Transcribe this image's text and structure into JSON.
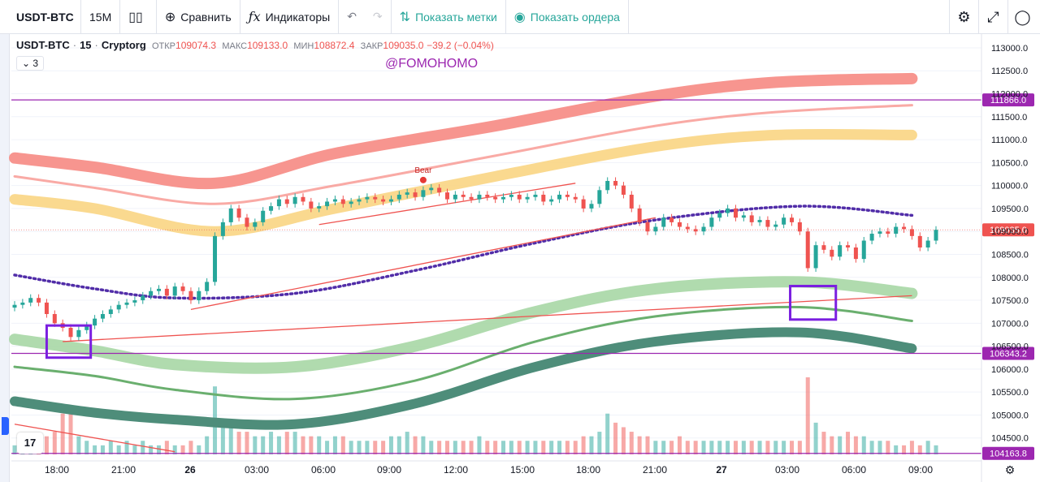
{
  "toolbar": {
    "symbol": "USDT-BTC",
    "interval": "15М",
    "compare_label": "Сравнить",
    "indicators_label": "Индикаторы",
    "show_marks_label": "Показать метки",
    "show_orders_label": "Показать ордера",
    "icons": [
      "candles-icon",
      "plus-circle-icon",
      "fx-icon",
      "undo-icon",
      "redo-icon",
      "settings-icon",
      "fullscreen-icon",
      "camera-icon"
    ]
  },
  "legend": {
    "symbol": "USDT-BTC",
    "interval": "15",
    "exchange": "Cryptorg",
    "open_label": "ОТКР",
    "open": "109074.3",
    "high_label": "МАКС",
    "high": "109133.0",
    "low_label": "МИН",
    "low": "108872.4",
    "close_label": "ЗАКР",
    "close": "109035.0",
    "change": "−39.2 (−0.04%)",
    "indicators_count": "3"
  },
  "watermark": "@FOMOHOMO",
  "logo_text": "17",
  "colors": {
    "up": "#26a69a",
    "down": "#ef5350",
    "band_red": "#f7958f",
    "band_orange": "#fad583",
    "band_light_green": "#a7d7a5",
    "band_green": "#6aaf6e",
    "band_dark_green": "#4e8d7a",
    "dotted": "#512da8",
    "level": "#9c27b0",
    "trend": "#ef5350",
    "box": "#7b1fe0"
  },
  "chart_data": {
    "type": "candlestick",
    "y_range": [
      104000,
      113300
    ],
    "y_ticks": [
      "113000.0",
      "112500.0",
      "112000.0",
      "111500.0",
      "111000.0",
      "110500.0",
      "110000.0",
      "109500.0",
      "109000.0",
      "108500.0",
      "108000.0",
      "107500.0",
      "107000.0",
      "106500.0",
      "106000.0",
      "105500.0",
      "105000.0",
      "104500.0"
    ],
    "y_tick_values": [
      113000,
      112500,
      112000,
      111500,
      111000,
      110500,
      110000,
      109500,
      109000,
      108500,
      108000,
      107500,
      107000,
      106500,
      106000,
      105500,
      105000,
      104500
    ],
    "x_ticks": [
      "18:00",
      "21:00",
      "26",
      "03:00",
      "06:00",
      "09:00",
      "12:00",
      "15:00",
      "18:00",
      "21:00",
      "27",
      "03:00",
      "06:00",
      "09:00"
    ],
    "horizontal_levels": [
      {
        "value": 111866.0,
        "label": "111866.0"
      },
      {
        "value": 106343.2,
        "label": "106343.2"
      },
      {
        "value": 104163.8,
        "label": "104163.8"
      }
    ],
    "current_price": {
      "value": 109035.0,
      "label": "109035.0"
    },
    "marker": {
      "text": "Bear",
      "x_index": 51,
      "price": 110120
    },
    "bands": {
      "band_red_thick": [
        [
          0,
          110600
        ],
        [
          10,
          110400
        ],
        [
          25,
          110050
        ],
        [
          40,
          110700
        ],
        [
          60,
          111300
        ],
        [
          80,
          111950
        ],
        [
          95,
          112250
        ],
        [
          112,
          112330
        ]
      ],
      "band_red_thin": [
        [
          0,
          110200
        ],
        [
          10,
          109950
        ],
        [
          25,
          109600
        ],
        [
          40,
          110000
        ],
        [
          60,
          110650
        ],
        [
          80,
          111300
        ],
        [
          95,
          111600
        ],
        [
          112,
          111750
        ]
      ],
      "band_orange": [
        [
          0,
          109700
        ],
        [
          10,
          109500
        ],
        [
          25,
          109000
        ],
        [
          40,
          109500
        ],
        [
          60,
          110200
        ],
        [
          80,
          110850
        ],
        [
          95,
          111100
        ],
        [
          112,
          111100
        ]
      ],
      "band_light_green": [
        [
          0,
          106650
        ],
        [
          10,
          106400
        ],
        [
          20,
          106100
        ],
        [
          35,
          106050
        ],
        [
          50,
          106500
        ],
        [
          65,
          107250
        ],
        [
          80,
          107750
        ],
        [
          98,
          107900
        ],
        [
          112,
          107650
        ]
      ],
      "band_green": [
        [
          0,
          106050
        ],
        [
          10,
          105850
        ],
        [
          20,
          105550
        ],
        [
          35,
          105350
        ],
        [
          50,
          105750
        ],
        [
          65,
          106600
        ],
        [
          80,
          107150
        ],
        [
          98,
          107350
        ],
        [
          112,
          107050
        ]
      ],
      "band_dark_green": [
        [
          0,
          105300
        ],
        [
          10,
          105050
        ],
        [
          20,
          104900
        ],
        [
          35,
          104800
        ],
        [
          50,
          105250
        ],
        [
          65,
          106050
        ],
        [
          80,
          106600
        ],
        [
          98,
          106800
        ],
        [
          112,
          106450
        ]
      ],
      "dotted_ma": [
        [
          0,
          108050
        ],
        [
          10,
          107750
        ],
        [
          20,
          107550
        ],
        [
          35,
          107650
        ],
        [
          50,
          108150
        ],
        [
          65,
          108750
        ],
        [
          80,
          109250
        ],
        [
          98,
          109550
        ],
        [
          112,
          109350
        ]
      ]
    },
    "trendlines": [
      {
        "from": [
          6,
          106600
        ],
        "to": [
          112,
          107600
        ]
      },
      {
        "from": [
          22,
          107300
        ],
        "to": [
          80,
          109300
        ]
      },
      {
        "from": [
          38,
          109150
        ],
        "to": [
          70,
          110050
        ]
      },
      {
        "from": [
          0,
          104800
        ],
        "to": [
          20,
          104200
        ]
      }
    ],
    "boxes": [
      {
        "x0": 4.0,
        "x1": 9.5,
        "y0": 106250,
        "y1": 106950
      },
      {
        "x0": 96.8,
        "x1": 102.5,
        "y0": 107080,
        "y1": 107810
      }
    ],
    "closes": [
      107400,
      107450,
      107550,
      107450,
      107200,
      107000,
      106900,
      106700,
      106850,
      106950,
      107100,
      107200,
      107300,
      107400,
      107450,
      107500,
      107600,
      107700,
      107750,
      107600,
      107800,
      107700,
      107500,
      107700,
      107900,
      108900,
      109200,
      109500,
      109300,
      109100,
      109200,
      109450,
      109550,
      109700,
      109600,
      109750,
      109650,
      109500,
      109550,
      109650,
      109700,
      109600,
      109650,
      109700,
      109750,
      109700,
      109650,
      109700,
      109800,
      109850,
      109750,
      109900,
      109950,
      109850,
      109700,
      109800,
      109750,
      109700,
      109800,
      109750,
      109700,
      109750,
      109800,
      109700,
      109750,
      109800,
      109650,
      109700,
      109800,
      109750,
      109700,
      109500,
      109600,
      109900,
      110100,
      110000,
      109800,
      109500,
      109200,
      109000,
      109100,
      109300,
      109200,
      109100,
      109050,
      109000,
      109100,
      109300,
      109400,
      109500,
      109300,
      109350,
      109200,
      109250,
      109100,
      109150,
      109300,
      109200,
      109000,
      108200,
      108700,
      108600,
      108450,
      108700,
      108650,
      108400,
      108800,
      108950,
      109000,
      108950,
      109100,
      109050,
      108900,
      108650,
      108800,
      109035
    ],
    "volumes": [
      2,
      2,
      3,
      3,
      4,
      5,
      9,
      9,
      4,
      3,
      2,
      2,
      3,
      2,
      3,
      2,
      3,
      2,
      2,
      3,
      2,
      2,
      3,
      2,
      4,
      15,
      7,
      6,
      5,
      5,
      4,
      4,
      5,
      4,
      5,
      5,
      4,
      4,
      4,
      3,
      4,
      4,
      3,
      3,
      3,
      3,
      3,
      4,
      4,
      5,
      4,
      4,
      3,
      3,
      3,
      3,
      3,
      3,
      4,
      3,
      3,
      3,
      3,
      3,
      3,
      3,
      3,
      3,
      3,
      3,
      3,
      4,
      4,
      5,
      9,
      7,
      6,
      5,
      4,
      4,
      3,
      3,
      3,
      4,
      3,
      3,
      3,
      3,
      3,
      3,
      3,
      3,
      3,
      3,
      3,
      3,
      3,
      3,
      3,
      17,
      7,
      5,
      4,
      4,
      5,
      4,
      4,
      3,
      3,
      3,
      2,
      2,
      3,
      2,
      3,
      2
    ]
  }
}
